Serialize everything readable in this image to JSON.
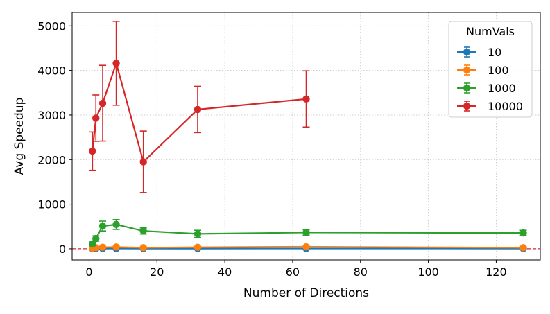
{
  "chart_data": {
    "type": "line",
    "xlabel": "Number of Directions",
    "ylabel": "Avg Speedup",
    "xlim": [
      -5,
      133
    ],
    "ylim": [
      -250,
      5300
    ],
    "xticks": [
      0,
      20,
      40,
      60,
      80,
      100,
      120
    ],
    "yticks": [
      0,
      1000,
      2000,
      3000,
      4000,
      5000
    ],
    "grid": true,
    "grid_style": "dotted",
    "reference_line": {
      "y": 1,
      "color": "#d62728",
      "style": "dashed"
    },
    "legend": {
      "title": "NumVals",
      "placement": "top-right"
    },
    "x": [
      1,
      2,
      4,
      8,
      16,
      32,
      64,
      128
    ],
    "series": [
      {
        "name": "10",
        "color": "#1f77b4",
        "values": [
          3,
          4,
          5,
          6,
          5,
          5,
          6,
          5
        ],
        "errors": [
          2,
          2,
          2,
          2,
          2,
          2,
          2,
          2
        ]
      },
      {
        "name": "100",
        "color": "#ff7f0e",
        "values": [
          15,
          25,
          35,
          40,
          25,
          35,
          45,
          25
        ],
        "errors": [
          10,
          12,
          15,
          15,
          12,
          15,
          18,
          12
        ]
      },
      {
        "name": "1000",
        "color": "#2ca02c",
        "values": [
          110,
          230,
          510,
          545,
          400,
          335,
          365,
          355
        ],
        "errors": [
          40,
          60,
          110,
          110,
          70,
          80,
          60,
          60
        ]
      },
      {
        "name": "10000",
        "color": "#d62728",
        "x": [
          1,
          2,
          4,
          8,
          16,
          32,
          64
        ],
        "values": [
          2190,
          2930,
          3265,
          4160,
          1950,
          3125,
          3360
        ],
        "errors": [
          430,
          520,
          850,
          940,
          690,
          520,
          630
        ]
      }
    ]
  }
}
